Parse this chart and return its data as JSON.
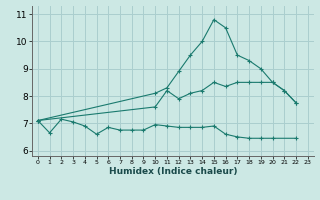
{
  "line1_x": [
    0,
    1,
    2,
    3,
    4,
    5,
    6,
    7,
    8,
    9,
    10,
    11,
    12,
    13,
    14,
    15,
    16,
    17,
    18,
    19,
    20,
    22
  ],
  "line1_y": [
    7.1,
    6.65,
    7.15,
    7.05,
    6.9,
    6.6,
    6.85,
    6.75,
    6.75,
    6.75,
    6.95,
    6.9,
    6.85,
    6.85,
    6.85,
    6.9,
    6.6,
    6.5,
    6.45,
    6.45,
    6.45,
    6.45
  ],
  "line2_x": [
    0,
    10,
    11,
    12,
    13,
    14,
    15,
    16,
    17,
    18,
    19,
    20,
    21,
    22
  ],
  "line2_y": [
    7.1,
    7.6,
    8.2,
    7.9,
    8.1,
    8.2,
    8.5,
    8.35,
    8.5,
    8.5,
    8.5,
    8.5,
    8.2,
    7.75
  ],
  "line3_x": [
    0,
    10,
    11,
    12,
    13,
    14,
    15,
    16,
    17,
    18,
    19,
    20,
    21,
    22
  ],
  "line3_y": [
    7.1,
    8.1,
    8.3,
    8.9,
    9.5,
    10.0,
    10.8,
    10.5,
    9.5,
    9.3,
    9.0,
    8.5,
    8.2,
    7.75
  ],
  "line_color": "#1a7a6e",
  "bg_color": "#cce8e4",
  "grid_color": "#aacece",
  "xlabel": "Humidex (Indice chaleur)",
  "ylim": [
    5.8,
    11.3
  ],
  "xlim": [
    -0.5,
    23.5
  ],
  "yticks": [
    6,
    7,
    8,
    9,
    10,
    11
  ],
  "xticks": [
    0,
    1,
    2,
    3,
    4,
    5,
    6,
    7,
    8,
    9,
    10,
    11,
    12,
    13,
    14,
    15,
    16,
    17,
    18,
    19,
    20,
    21,
    22,
    23
  ]
}
